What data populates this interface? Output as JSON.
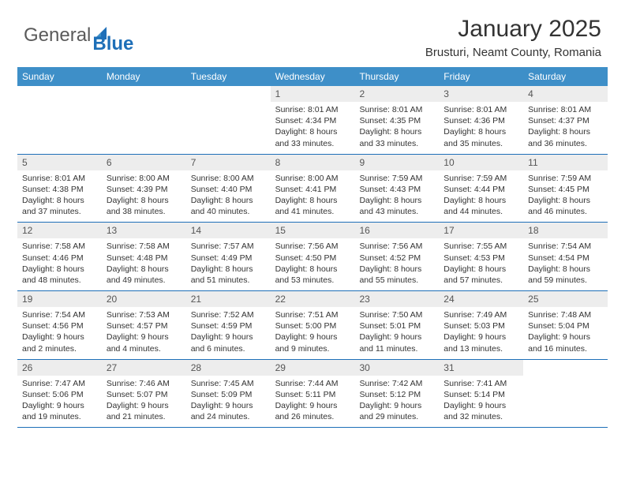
{
  "logo": {
    "word1": "General",
    "word2": "Blue"
  },
  "title": "January 2025",
  "location": "Brusturi, Neamt County, Romania",
  "header_bg": "#3e8fc8",
  "divider_color": "#1e6fb8",
  "daynum_bg": "#ededed",
  "days_of_week": [
    "Sunday",
    "Monday",
    "Tuesday",
    "Wednesday",
    "Thursday",
    "Friday",
    "Saturday"
  ],
  "weeks": [
    {
      "cells": [
        null,
        null,
        null,
        {
          "d": "1",
          "sr": "8:01 AM",
          "ss": "4:34 PM",
          "dl": "8 hours and 33 minutes."
        },
        {
          "d": "2",
          "sr": "8:01 AM",
          "ss": "4:35 PM",
          "dl": "8 hours and 33 minutes."
        },
        {
          "d": "3",
          "sr": "8:01 AM",
          "ss": "4:36 PM",
          "dl": "8 hours and 35 minutes."
        },
        {
          "d": "4",
          "sr": "8:01 AM",
          "ss": "4:37 PM",
          "dl": "8 hours and 36 minutes."
        }
      ]
    },
    {
      "cells": [
        {
          "d": "5",
          "sr": "8:01 AM",
          "ss": "4:38 PM",
          "dl": "8 hours and 37 minutes."
        },
        {
          "d": "6",
          "sr": "8:00 AM",
          "ss": "4:39 PM",
          "dl": "8 hours and 38 minutes."
        },
        {
          "d": "7",
          "sr": "8:00 AM",
          "ss": "4:40 PM",
          "dl": "8 hours and 40 minutes."
        },
        {
          "d": "8",
          "sr": "8:00 AM",
          "ss": "4:41 PM",
          "dl": "8 hours and 41 minutes."
        },
        {
          "d": "9",
          "sr": "7:59 AM",
          "ss": "4:43 PM",
          "dl": "8 hours and 43 minutes."
        },
        {
          "d": "10",
          "sr": "7:59 AM",
          "ss": "4:44 PM",
          "dl": "8 hours and 44 minutes."
        },
        {
          "d": "11",
          "sr": "7:59 AM",
          "ss": "4:45 PM",
          "dl": "8 hours and 46 minutes."
        }
      ]
    },
    {
      "cells": [
        {
          "d": "12",
          "sr": "7:58 AM",
          "ss": "4:46 PM",
          "dl": "8 hours and 48 minutes."
        },
        {
          "d": "13",
          "sr": "7:58 AM",
          "ss": "4:48 PM",
          "dl": "8 hours and 49 minutes."
        },
        {
          "d": "14",
          "sr": "7:57 AM",
          "ss": "4:49 PM",
          "dl": "8 hours and 51 minutes."
        },
        {
          "d": "15",
          "sr": "7:56 AM",
          "ss": "4:50 PM",
          "dl": "8 hours and 53 minutes."
        },
        {
          "d": "16",
          "sr": "7:56 AM",
          "ss": "4:52 PM",
          "dl": "8 hours and 55 minutes."
        },
        {
          "d": "17",
          "sr": "7:55 AM",
          "ss": "4:53 PM",
          "dl": "8 hours and 57 minutes."
        },
        {
          "d": "18",
          "sr": "7:54 AM",
          "ss": "4:54 PM",
          "dl": "8 hours and 59 minutes."
        }
      ]
    },
    {
      "cells": [
        {
          "d": "19",
          "sr": "7:54 AM",
          "ss": "4:56 PM",
          "dl": "9 hours and 2 minutes."
        },
        {
          "d": "20",
          "sr": "7:53 AM",
          "ss": "4:57 PM",
          "dl": "9 hours and 4 minutes."
        },
        {
          "d": "21",
          "sr": "7:52 AM",
          "ss": "4:59 PM",
          "dl": "9 hours and 6 minutes."
        },
        {
          "d": "22",
          "sr": "7:51 AM",
          "ss": "5:00 PM",
          "dl": "9 hours and 9 minutes."
        },
        {
          "d": "23",
          "sr": "7:50 AM",
          "ss": "5:01 PM",
          "dl": "9 hours and 11 minutes."
        },
        {
          "d": "24",
          "sr": "7:49 AM",
          "ss": "5:03 PM",
          "dl": "9 hours and 13 minutes."
        },
        {
          "d": "25",
          "sr": "7:48 AM",
          "ss": "5:04 PM",
          "dl": "9 hours and 16 minutes."
        }
      ]
    },
    {
      "cells": [
        {
          "d": "26",
          "sr": "7:47 AM",
          "ss": "5:06 PM",
          "dl": "9 hours and 19 minutes."
        },
        {
          "d": "27",
          "sr": "7:46 AM",
          "ss": "5:07 PM",
          "dl": "9 hours and 21 minutes."
        },
        {
          "d": "28",
          "sr": "7:45 AM",
          "ss": "5:09 PM",
          "dl": "9 hours and 24 minutes."
        },
        {
          "d": "29",
          "sr": "7:44 AM",
          "ss": "5:11 PM",
          "dl": "9 hours and 26 minutes."
        },
        {
          "d": "30",
          "sr": "7:42 AM",
          "ss": "5:12 PM",
          "dl": "9 hours and 29 minutes."
        },
        {
          "d": "31",
          "sr": "7:41 AM",
          "ss": "5:14 PM",
          "dl": "9 hours and 32 minutes."
        },
        null
      ]
    }
  ],
  "labels": {
    "sunrise": "Sunrise:",
    "sunset": "Sunset:",
    "daylight": "Daylight:"
  }
}
